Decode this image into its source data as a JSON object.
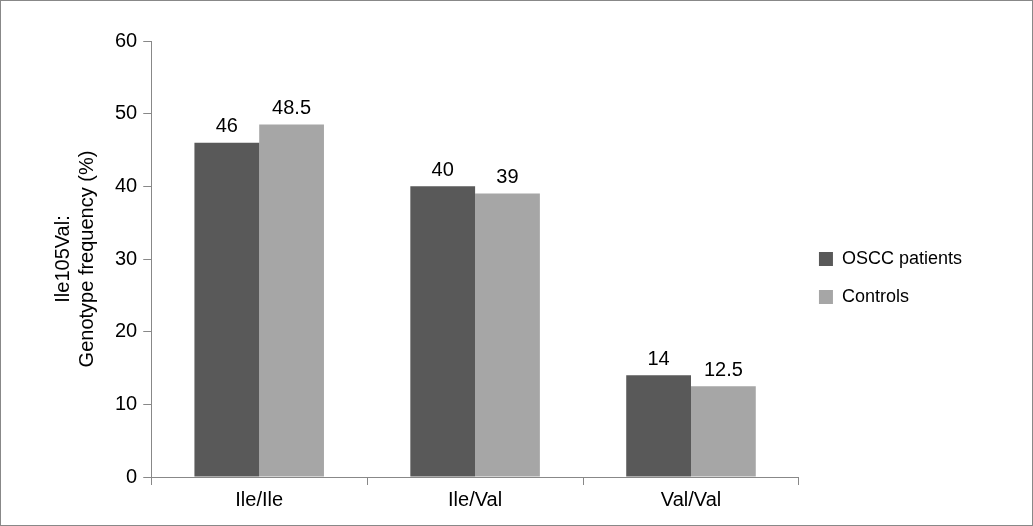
{
  "chart_data": {
    "type": "bar",
    "ylabel": "Ile105Val:\nGenotype frequency (%)",
    "categories": [
      "Ile/Ile",
      "Ile/Val",
      "Val/Val"
    ],
    "series": [
      {
        "name": "OSCC patients",
        "color": "#595959",
        "values": [
          46,
          40,
          14
        ]
      },
      {
        "name": "Controls",
        "color": "#a6a6a6",
        "values": [
          48.5,
          39,
          12.5
        ]
      }
    ],
    "ylim": [
      0,
      60
    ],
    "yticks": [
      0,
      10,
      20,
      30,
      40,
      50,
      60
    ],
    "grid": false,
    "legend": "right",
    "data_labels": true
  }
}
